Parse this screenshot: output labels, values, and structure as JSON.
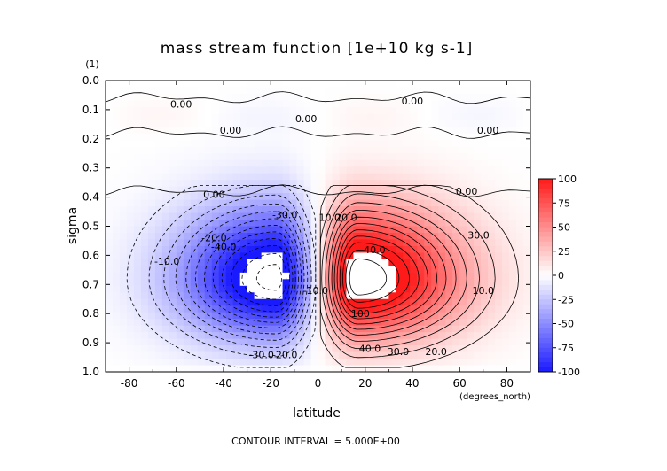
{
  "chart_data": {
    "type": "heatmap",
    "title": "mass stream function [1e+10 kg s-1]",
    "xlabel": "latitude",
    "x_unit": "(degrees_north)",
    "ylabel": "sigma",
    "y_unit": "(1)",
    "footer": "CONTOUR INTERVAL = 5.000E+00",
    "xlim": [
      -90,
      90
    ],
    "ylim": [
      1.0,
      0.0
    ],
    "x_ticks": [
      "-80",
      "-60",
      "-40",
      "-20",
      "0",
      "20",
      "40",
      "60",
      "80"
    ],
    "y_ticks": [
      "0.0",
      "0.1",
      "0.2",
      "0.3",
      "0.4",
      "0.5",
      "0.6",
      "0.7",
      "0.8",
      "0.9",
      "1.0"
    ],
    "colorbar": {
      "min": -100,
      "max": 100,
      "ticks": [
        "100",
        "75",
        "50",
        "25",
        "0",
        "-25",
        "-50",
        "-75",
        "-100"
      ],
      "negative_color": "#1a1aff",
      "positive_color": "#ff1a1a",
      "neutral_color": "#ffffff"
    },
    "cells": {
      "north": {
        "center_lat": 17,
        "center_sigma": 0.68,
        "peak": 130
      },
      "south": {
        "center_lat": -18,
        "center_sigma": 0.68,
        "peak": -125
      }
    },
    "contour_interval": 5.0,
    "contour_labels": [
      {
        "text": "0.00",
        "lat": -58,
        "sigma": 0.08
      },
      {
        "text": "0.00",
        "lat": -37,
        "sigma": 0.17
      },
      {
        "text": "0.00",
        "lat": -44,
        "sigma": 0.39
      },
      {
        "text": "0.00",
        "lat": 63,
        "sigma": 0.38
      },
      {
        "text": "0.00",
        "lat": -5,
        "sigma": 0.13
      },
      {
        "text": "0.00",
        "lat": 40,
        "sigma": 0.07
      },
      {
        "text": "0.00",
        "lat": 72,
        "sigma": 0.17
      },
      {
        "text": "-10.0",
        "lat": -64,
        "sigma": 0.62
      },
      {
        "text": "-20.0",
        "lat": -44,
        "sigma": 0.54
      },
      {
        "text": "-30.0",
        "lat": -14,
        "sigma": 0.46
      },
      {
        "text": "-40.0",
        "lat": -40,
        "sigma": 0.57
      },
      {
        "text": "-30.0",
        "lat": -24,
        "sigma": 0.94
      },
      {
        "text": "-20.0",
        "lat": -14,
        "sigma": 0.94
      },
      {
        "text": "-10.0",
        "lat": -1,
        "sigma": 0.72
      },
      {
        "text": "10.0",
        "lat": 5,
        "sigma": 0.47
      },
      {
        "text": "20.0",
        "lat": 12,
        "sigma": 0.47
      },
      {
        "text": "40.0",
        "lat": 24,
        "sigma": 0.58
      },
      {
        "text": "100",
        "lat": 18,
        "sigma": 0.8
      },
      {
        "text": "40.0",
        "lat": 22,
        "sigma": 0.92
      },
      {
        "text": "30.0",
        "lat": 34,
        "sigma": 0.93
      },
      {
        "text": "20.0",
        "lat": 50,
        "sigma": 0.93
      },
      {
        "text": "10.0",
        "lat": 70,
        "sigma": 0.72
      },
      {
        "text": "30.0",
        "lat": 68,
        "sigma": 0.53
      }
    ]
  }
}
